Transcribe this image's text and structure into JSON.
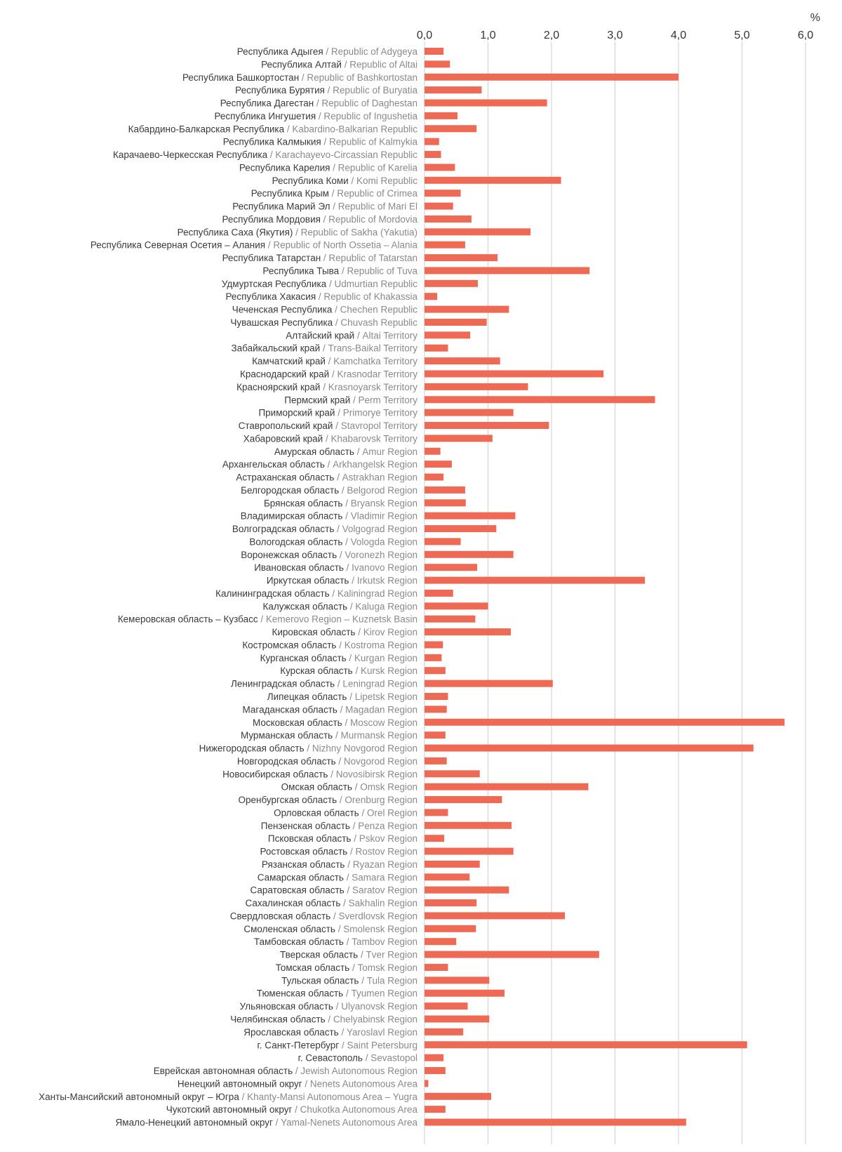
{
  "chart_data": {
    "type": "bar",
    "orientation": "horizontal",
    "unit_label": "%",
    "xlim": [
      0,
      6.0
    ],
    "ticks": [
      "0,0",
      "1,0",
      "2,0",
      "3,0",
      "4,0",
      "5,0",
      "6,0"
    ],
    "tick_values": [
      0,
      1,
      2,
      3,
      4,
      5,
      6
    ],
    "grid": true,
    "bar_color": "#ee6a55",
    "categories": [
      {
        "ru": "Республика Адыгея",
        "en": "Republic of Adygeya"
      },
      {
        "ru": "Республика Алтай",
        "en": "Republic of Altai"
      },
      {
        "ru": "Республика Башкортостан",
        "en": "Republic of Bashkortostan"
      },
      {
        "ru": "Республика Бурятия",
        "en": "Republic of Buryatia"
      },
      {
        "ru": "Республика Дагестан",
        "en": "Republic of Daghestan"
      },
      {
        "ru": "Республика Ингушетия",
        "en": "Republic of Ingushetia"
      },
      {
        "ru": "Кабардино-Балкарская Республика",
        "en": "Kabardino-Balkarian Republic"
      },
      {
        "ru": "Республика Калмыкия",
        "en": "Republic of Kalmykia"
      },
      {
        "ru": "Карачаево-Черкесская Республика",
        "en": "Karachayevo-Circassian Republic"
      },
      {
        "ru": "Республика Карелия",
        "en": "Republic of Karelia"
      },
      {
        "ru": "Республика Коми",
        "en": "Komi Republic"
      },
      {
        "ru": "Республика Крым",
        "en": "Republic of Crimea"
      },
      {
        "ru": "Республика Марий Эл",
        "en": "Republic of Mari El"
      },
      {
        "ru": "Республика Мордовия",
        "en": "Republic of Mordovia"
      },
      {
        "ru": "Республика Саха (Якутия)",
        "en": "Republic of Sakha (Yakutia)"
      },
      {
        "ru": "Республика Северная Осетия – Алания",
        "en": "Republic of North Ossetia – Alania"
      },
      {
        "ru": "Республика Татарстан",
        "en": "Republic of Tatarstan"
      },
      {
        "ru": "Республика Тыва",
        "en": "Republic of Tuva"
      },
      {
        "ru": "Удмуртская Республика",
        "en": "Udmurtian Republic"
      },
      {
        "ru": "Республика Хакасия",
        "en": "Republic of Khakassia"
      },
      {
        "ru": "Чеченская Республика",
        "en": "Chechen Republic"
      },
      {
        "ru": "Чувашская Республика",
        "en": "Chuvash Republic"
      },
      {
        "ru": "Алтайский край",
        "en": "Altai Territory"
      },
      {
        "ru": "Забайкальский край",
        "en": "Trans-Baikal Territory"
      },
      {
        "ru": "Камчатский край",
        "en": "Kamchatka Territory"
      },
      {
        "ru": "Краснодарский край",
        "en": "Krasnodar Territory"
      },
      {
        "ru": "Красноярский край",
        "en": "Krasnoyarsk Territory"
      },
      {
        "ru": "Пермский край",
        "en": "Perm Territory"
      },
      {
        "ru": "Приморский край",
        "en": "Primorye Territory"
      },
      {
        "ru": "Ставропольский край",
        "en": "Stavropol Territory"
      },
      {
        "ru": "Хабаровский край",
        "en": "Khabarovsk Territory"
      },
      {
        "ru": "Амурская область",
        "en": "Amur Region"
      },
      {
        "ru": "Архангельская область",
        "en": "Arkhangelsk Region"
      },
      {
        "ru": "Астраханская область",
        "en": "Astrakhan Region"
      },
      {
        "ru": "Белгородская область",
        "en": "Belgorod Region"
      },
      {
        "ru": "Брянская область",
        "en": "Bryansk Region"
      },
      {
        "ru": "Владимирская область",
        "en": "Vladimir Region"
      },
      {
        "ru": "Волгоградская область",
        "en": "Volgograd Region"
      },
      {
        "ru": "Вологодская область",
        "en": "Vologda Region"
      },
      {
        "ru": "Воронежская область",
        "en": "Voronezh Region"
      },
      {
        "ru": "Ивановская область",
        "en": "Ivanovo Region"
      },
      {
        "ru": "Иркутская область",
        "en": "Irkutsk Region"
      },
      {
        "ru": "Калининградская область",
        "en": "Kaliningrad Region"
      },
      {
        "ru": "Калужская область",
        "en": "Kaluga Region"
      },
      {
        "ru": "Кемеровская область – Кузбасс",
        "en": "Kemerovo Region – Kuznetsk Basin"
      },
      {
        "ru": "Кировская область",
        "en": "Kirov Region"
      },
      {
        "ru": "Костромская область",
        "en": "Kostroma Region"
      },
      {
        "ru": "Курганская область",
        "en": "Kurgan Region"
      },
      {
        "ru": "Курская область",
        "en": "Kursk Region"
      },
      {
        "ru": "Ленинградская область",
        "en": "Leningrad Region"
      },
      {
        "ru": "Липецкая область",
        "en": "Lipetsk Region"
      },
      {
        "ru": "Магаданская область",
        "en": "Magadan Region"
      },
      {
        "ru": "Московская область",
        "en": "Moscow Region"
      },
      {
        "ru": "Мурманская область",
        "en": "Murmansk Region"
      },
      {
        "ru": "Нижегородская область",
        "en": "Nizhny Novgorod Region"
      },
      {
        "ru": "Новгородская область",
        "en": "Novgorod Region"
      },
      {
        "ru": "Новосибирская область",
        "en": "Novosibirsk Region"
      },
      {
        "ru": "Омская область",
        "en": "Omsk Region"
      },
      {
        "ru": "Оренбургская область",
        "en": "Orenburg Region"
      },
      {
        "ru": "Орловская область",
        "en": "Orel Region"
      },
      {
        "ru": "Пензенская область",
        "en": "Penza Region"
      },
      {
        "ru": "Псковская область",
        "en": "Pskov Region"
      },
      {
        "ru": "Ростовская область",
        "en": "Rostov Region"
      },
      {
        "ru": "Рязанская область",
        "en": "Ryazan Region"
      },
      {
        "ru": "Самарская область",
        "en": "Samara Region"
      },
      {
        "ru": "Саратовская область",
        "en": "Saratov Region"
      },
      {
        "ru": "Сахалинская область",
        "en": "Sakhalin Region"
      },
      {
        "ru": "Свердловская область",
        "en": "Sverdlovsk Region"
      },
      {
        "ru": "Смоленская область",
        "en": "Smolensk Region"
      },
      {
        "ru": "Тамбовская область",
        "en": "Tambov Region"
      },
      {
        "ru": "Тверская область",
        "en": "Tver Region"
      },
      {
        "ru": "Томская область",
        "en": "Tomsk Region"
      },
      {
        "ru": "Тульская область",
        "en": "Tula Region"
      },
      {
        "ru": "Тюменская область",
        "en": "Tyumen Region"
      },
      {
        "ru": "Ульяновская область",
        "en": "Ulyanovsk Region"
      },
      {
        "ru": "Челябинская область",
        "en": "Chelyabinsk Region"
      },
      {
        "ru": "Ярославская область",
        "en": "Yaroslavl Region"
      },
      {
        "ru": "г. Санкт-Петербург",
        "en": "Saint Petersburg"
      },
      {
        "ru": "г. Севастополь",
        "en": "Sevastopol"
      },
      {
        "ru": "Еврейская автономная область",
        "en": "Jewish Autonomous Region"
      },
      {
        "ru": "Ненецкий автономный округ",
        "en": "Nenets Autonomous Area"
      },
      {
        "ru": "Ханты-Мансийский автономный округ – Югра",
        "en": "Khanty-Mansi Autonomous Area – Yugra"
      },
      {
        "ru": "Чукотский автономный округ",
        "en": "Chukotka Autonomous Area"
      },
      {
        "ru": "Ямало-Ненецкий автономный округ",
        "en": "Yamal-Nenets Autonomous Area"
      }
    ],
    "values": [
      0.3,
      0.4,
      4.0,
      0.9,
      1.93,
      0.52,
      0.82,
      0.23,
      0.26,
      0.48,
      2.15,
      0.57,
      0.45,
      0.74,
      1.67,
      0.64,
      1.15,
      2.6,
      0.84,
      0.2,
      1.33,
      0.98,
      0.72,
      0.37,
      1.19,
      2.82,
      1.63,
      3.63,
      1.4,
      1.96,
      1.07,
      0.25,
      0.43,
      0.3,
      0.64,
      0.65,
      1.43,
      1.13,
      0.57,
      1.4,
      0.83,
      3.47,
      0.45,
      1.0,
      0.8,
      1.36,
      0.29,
      0.27,
      0.33,
      2.02,
      0.37,
      0.35,
      5.67,
      0.33,
      5.18,
      0.35,
      0.87,
      2.58,
      1.22,
      0.37,
      1.37,
      0.31,
      1.4,
      0.87,
      0.71,
      1.33,
      0.82,
      2.21,
      0.81,
      0.5,
      2.75,
      0.37,
      1.02,
      1.26,
      0.68,
      1.02,
      0.61,
      5.08,
      0.3,
      0.33,
      0.06,
      1.05,
      0.33,
      4.12
    ]
  }
}
